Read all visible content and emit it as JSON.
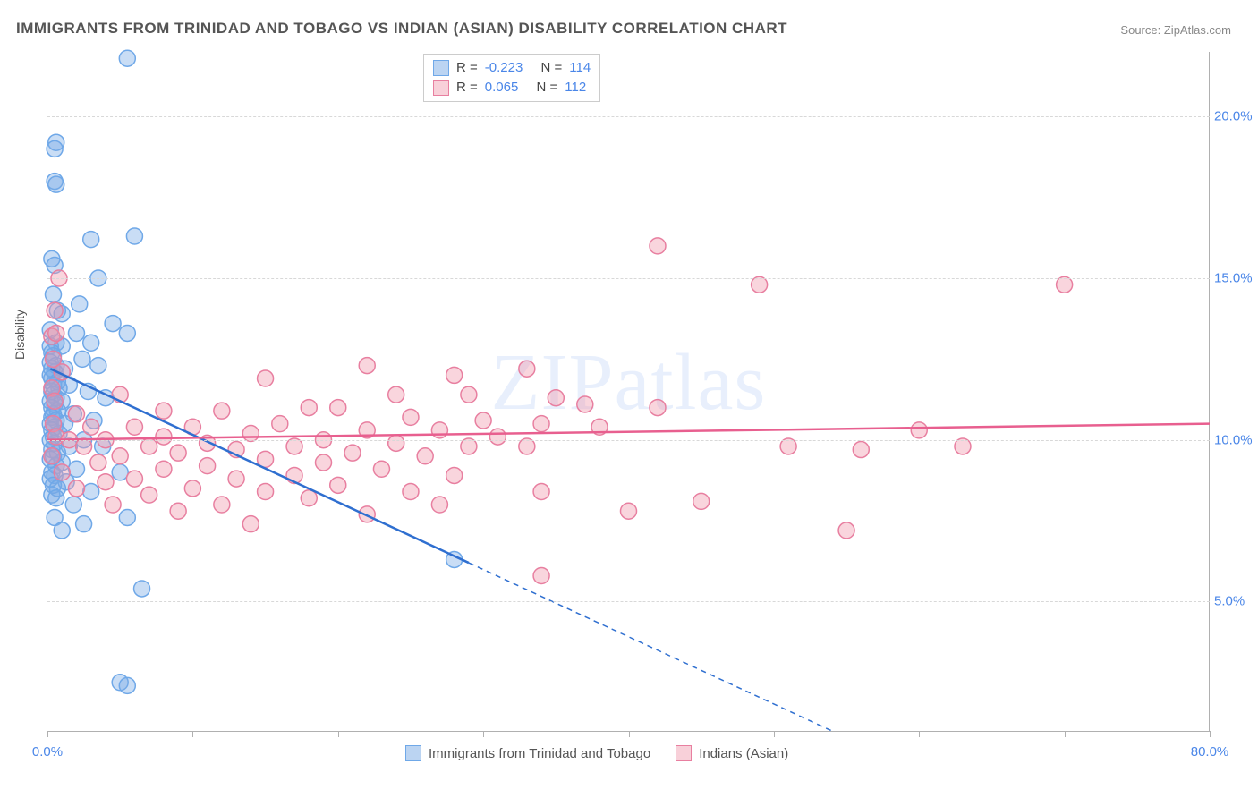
{
  "title": "IMMIGRANTS FROM TRINIDAD AND TOBAGO VS INDIAN (ASIAN) DISABILITY CORRELATION CHART",
  "source_label": "Source:",
  "source_value": "ZipAtlas.com",
  "watermark": "ZIPatlas",
  "ylabel": "Disability",
  "chart": {
    "type": "scatter",
    "xlim": [
      0,
      80
    ],
    "ylim": [
      1,
      22
    ],
    "x_ticks": [
      0,
      10,
      20,
      30,
      40,
      50,
      60,
      70,
      80
    ],
    "x_tick_labels_shown": {
      "0": "0.0%",
      "80": "80.0%"
    },
    "y_grid": [
      5,
      10,
      15,
      20
    ],
    "y_tick_labels": {
      "5": "5.0%",
      "10": "10.0%",
      "15": "15.0%",
      "20": "20.0%"
    },
    "background_color": "#ffffff",
    "grid_color": "#d8d8d8",
    "axis_color": "#b0b0b0",
    "label_fontsize": 14,
    "tick_fontsize": 15,
    "tick_label_color": "#4a86e8",
    "marker_radius": 9,
    "marker_stroke_width": 1.5,
    "trend_line_width": 2.5,
    "series": [
      {
        "key": "trinidad",
        "label": "Immigrants from Trinidad and Tobago",
        "fill_color": "rgba(120,170,230,0.40)",
        "stroke_color": "#6fa8e8",
        "trend_color": "#2f6fd0",
        "r": -0.223,
        "n": 114,
        "trendline": {
          "x1": 0.2,
          "y1": 12.2,
          "x2": 29,
          "y2": 6.2,
          "x2_dash": 54,
          "y2_dash": 1.0
        },
        "points": [
          [
            5.5,
            21.8
          ],
          [
            0.6,
            19.2
          ],
          [
            0.5,
            19.0
          ],
          [
            0.5,
            18.0
          ],
          [
            0.6,
            17.9
          ],
          [
            6.0,
            16.3
          ],
          [
            3.0,
            16.2
          ],
          [
            0.3,
            15.6
          ],
          [
            3.5,
            15.0
          ],
          [
            0.5,
            15.4
          ],
          [
            0.4,
            14.5
          ],
          [
            2.2,
            14.2
          ],
          [
            0.7,
            14.0
          ],
          [
            1.0,
            13.9
          ],
          [
            4.5,
            13.6
          ],
          [
            0.2,
            13.4
          ],
          [
            2.0,
            13.3
          ],
          [
            5.5,
            13.3
          ],
          [
            0.6,
            13.0
          ],
          [
            0.2,
            12.9
          ],
          [
            3.0,
            13.0
          ],
          [
            1.0,
            12.9
          ],
          [
            0.3,
            12.7
          ],
          [
            0.4,
            12.6
          ],
          [
            2.4,
            12.5
          ],
          [
            0.2,
            12.4
          ],
          [
            0.6,
            12.3
          ],
          [
            0.3,
            12.2
          ],
          [
            1.2,
            12.2
          ],
          [
            0.5,
            12.1
          ],
          [
            0.2,
            12.0
          ],
          [
            3.5,
            12.3
          ],
          [
            0.3,
            11.9
          ],
          [
            0.7,
            11.8
          ],
          [
            0.4,
            11.7
          ],
          [
            1.5,
            11.7
          ],
          [
            0.8,
            11.6
          ],
          [
            0.3,
            11.5
          ],
          [
            2.8,
            11.5
          ],
          [
            0.4,
            11.4
          ],
          [
            0.6,
            11.3
          ],
          [
            0.2,
            11.2
          ],
          [
            1.0,
            11.2
          ],
          [
            0.5,
            11.1
          ],
          [
            4.0,
            11.3
          ],
          [
            0.3,
            11.0
          ],
          [
            0.7,
            10.9
          ],
          [
            0.4,
            10.8
          ],
          [
            1.8,
            10.8
          ],
          [
            0.3,
            10.7
          ],
          [
            0.6,
            10.6
          ],
          [
            0.2,
            10.5
          ],
          [
            1.2,
            10.5
          ],
          [
            0.5,
            10.4
          ],
          [
            3.2,
            10.6
          ],
          [
            0.3,
            10.3
          ],
          [
            0.8,
            10.2
          ],
          [
            0.4,
            10.1
          ],
          [
            2.5,
            10.0
          ],
          [
            0.2,
            10.0
          ],
          [
            0.5,
            9.9
          ],
          [
            1.5,
            9.8
          ],
          [
            0.3,
            9.7
          ],
          [
            0.7,
            9.6
          ],
          [
            3.8,
            9.8
          ],
          [
            0.4,
            9.5
          ],
          [
            0.2,
            9.4
          ],
          [
            1.0,
            9.3
          ],
          [
            0.6,
            9.2
          ],
          [
            2.0,
            9.1
          ],
          [
            0.3,
            9.0
          ],
          [
            0.5,
            8.9
          ],
          [
            5.0,
            9.0
          ],
          [
            0.2,
            8.8
          ],
          [
            1.3,
            8.7
          ],
          [
            0.4,
            8.6
          ],
          [
            0.7,
            8.5
          ],
          [
            3.0,
            8.4
          ],
          [
            0.3,
            8.3
          ],
          [
            0.6,
            8.2
          ],
          [
            1.8,
            8.0
          ],
          [
            5.5,
            7.6
          ],
          [
            0.5,
            7.6
          ],
          [
            2.5,
            7.4
          ],
          [
            1.0,
            7.2
          ],
          [
            28.0,
            6.3
          ],
          [
            6.5,
            5.4
          ],
          [
            5.0,
            2.5
          ],
          [
            5.5,
            2.4
          ]
        ]
      },
      {
        "key": "indian",
        "label": "Indians (Asian)",
        "fill_color": "rgba(240,150,170,0.40)",
        "stroke_color": "#e87fa0",
        "trend_color": "#e85f8f",
        "r": 0.065,
        "n": 112,
        "trendline": {
          "x1": 0,
          "y1": 10.0,
          "x2": 80,
          "y2": 10.5
        },
        "points": [
          [
            42.0,
            16.0
          ],
          [
            49.0,
            14.8
          ],
          [
            70.0,
            14.8
          ],
          [
            0.8,
            15.0
          ],
          [
            0.5,
            14.0
          ],
          [
            0.3,
            13.2
          ],
          [
            0.6,
            13.3
          ],
          [
            0.4,
            12.5
          ],
          [
            22.0,
            12.3
          ],
          [
            33.0,
            12.2
          ],
          [
            1.0,
            12.1
          ],
          [
            15.0,
            11.9
          ],
          [
            28.0,
            12.0
          ],
          [
            0.3,
            11.6
          ],
          [
            5.0,
            11.4
          ],
          [
            29.0,
            11.4
          ],
          [
            24.0,
            11.4
          ],
          [
            0.5,
            11.2
          ],
          [
            18.0,
            11.0
          ],
          [
            35.0,
            11.3
          ],
          [
            37.0,
            11.1
          ],
          [
            12.0,
            10.9
          ],
          [
            8.0,
            10.9
          ],
          [
            20.0,
            11.0
          ],
          [
            2.0,
            10.8
          ],
          [
            42.0,
            11.0
          ],
          [
            25.0,
            10.7
          ],
          [
            0.4,
            10.5
          ],
          [
            30.0,
            10.6
          ],
          [
            16.0,
            10.5
          ],
          [
            10.0,
            10.4
          ],
          [
            6.0,
            10.4
          ],
          [
            34.0,
            10.5
          ],
          [
            3.0,
            10.4
          ],
          [
            22.0,
            10.3
          ],
          [
            14.0,
            10.2
          ],
          [
            27.0,
            10.3
          ],
          [
            0.6,
            10.1
          ],
          [
            38.0,
            10.4
          ],
          [
            8.0,
            10.1
          ],
          [
            19.0,
            10.0
          ],
          [
            1.5,
            10.0
          ],
          [
            31.0,
            10.1
          ],
          [
            11.0,
            9.9
          ],
          [
            4.0,
            10.0
          ],
          [
            24.0,
            9.9
          ],
          [
            17.0,
            9.8
          ],
          [
            60.0,
            10.3
          ],
          [
            7.0,
            9.8
          ],
          [
            29.0,
            9.8
          ],
          [
            13.0,
            9.7
          ],
          [
            2.5,
            9.8
          ],
          [
            21.0,
            9.6
          ],
          [
            33.0,
            9.8
          ],
          [
            9.0,
            9.6
          ],
          [
            0.3,
            9.5
          ],
          [
            26.0,
            9.5
          ],
          [
            15.0,
            9.4
          ],
          [
            5.0,
            9.5
          ],
          [
            19.0,
            9.3
          ],
          [
            63.0,
            9.8
          ],
          [
            11.0,
            9.2
          ],
          [
            51.0,
            9.8
          ],
          [
            3.5,
            9.3
          ],
          [
            23.0,
            9.1
          ],
          [
            8.0,
            9.1
          ],
          [
            56.0,
            9.7
          ],
          [
            17.0,
            8.9
          ],
          [
            1.0,
            9.0
          ],
          [
            28.0,
            8.9
          ],
          [
            13.0,
            8.8
          ],
          [
            6.0,
            8.8
          ],
          [
            20.0,
            8.6
          ],
          [
            4.0,
            8.7
          ],
          [
            10.0,
            8.5
          ],
          [
            25.0,
            8.4
          ],
          [
            15.0,
            8.4
          ],
          [
            2.0,
            8.5
          ],
          [
            34.0,
            8.4
          ],
          [
            7.0,
            8.3
          ],
          [
            18.0,
            8.2
          ],
          [
            12.0,
            8.0
          ],
          [
            27.0,
            8.0
          ],
          [
            45.0,
            8.1
          ],
          [
            4.5,
            8.0
          ],
          [
            9.0,
            7.8
          ],
          [
            22.0,
            7.7
          ],
          [
            40.0,
            7.8
          ],
          [
            14.0,
            7.4
          ],
          [
            55.0,
            7.2
          ],
          [
            34.0,
            5.8
          ]
        ]
      }
    ]
  },
  "stat_legend": {
    "rows": [
      {
        "swatch": "blue",
        "r_label": "R =",
        "r_val": "-0.223",
        "n_label": "N =",
        "n_val": "114"
      },
      {
        "swatch": "pink",
        "r_label": "R =",
        "r_val": "0.065",
        "n_label": "N =",
        "n_val": "112"
      }
    ]
  },
  "bottom_legend": [
    {
      "swatch": "blue",
      "label": "Immigrants from Trinidad and Tobago"
    },
    {
      "swatch": "pink",
      "label": "Indians (Asian)"
    }
  ]
}
